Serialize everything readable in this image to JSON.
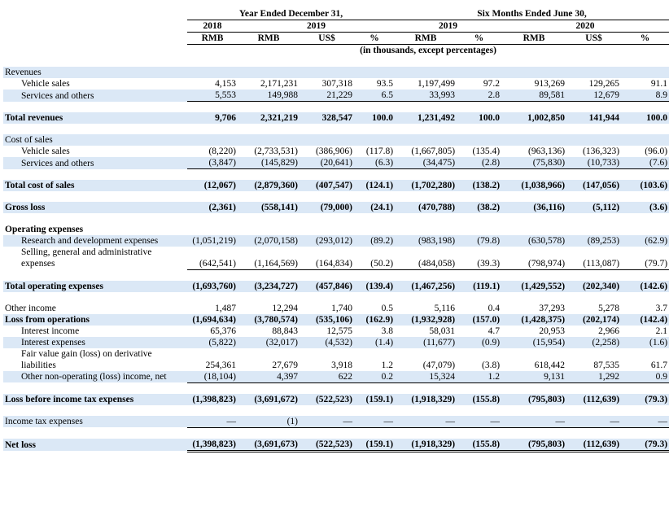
{
  "header": {
    "periods": [
      "Year Ended December 31,",
      "Six Months Ended June 30,"
    ],
    "years": [
      "2018",
      "2019",
      "2019",
      "2020"
    ],
    "units": [
      "RMB",
      "RMB",
      "US$",
      "%",
      "RMB",
      "%",
      "RMB",
      "US$",
      "%"
    ],
    "note": "(in thousands, except percentages)"
  },
  "table": {
    "rows": [
      {
        "label": "Revenues"
      },
      {
        "label": "Vehicle sales",
        "values": [
          "4,153",
          "2,171,231",
          "307,318",
          "93.5",
          "1,197,499",
          "97.2",
          "913,269",
          "129,265",
          "91.1"
        ]
      },
      {
        "label": "Services and others",
        "values": [
          "5,553",
          "149,988",
          "21,229",
          "6.5",
          "33,993",
          "2.8",
          "89,581",
          "12,679",
          "8.9"
        ]
      },
      {
        "label": "Total revenues",
        "values": [
          "9,706",
          "2,321,219",
          "328,547",
          "100.0",
          "1,231,492",
          "100.0",
          "1,002,850",
          "141,944",
          "100.0"
        ]
      },
      {
        "label": "Cost of sales"
      },
      {
        "label": "Vehicle sales",
        "values": [
          "(8,220)",
          "(2,733,531)",
          "(386,906)",
          "(117.8)",
          "(1,667,805)",
          "(135.4)",
          "(963,136)",
          "(136,323)",
          "(96.0)"
        ]
      },
      {
        "label": "Services and others",
        "values": [
          "(3,847)",
          "(145,829)",
          "(20,641)",
          "(6.3)",
          "(34,475)",
          "(2.8)",
          "(75,830)",
          "(10,733)",
          "(7.6)"
        ]
      },
      {
        "label": "Total cost of sales",
        "values": [
          "(12,067)",
          "(2,879,360)",
          "(407,547)",
          "(124.1)",
          "(1,702,280)",
          "(138.2)",
          "(1,038,966)",
          "(147,056)",
          "(103.6)"
        ]
      },
      {
        "label": "Gross loss",
        "values": [
          "(2,361)",
          "(558,141)",
          "(79,000)",
          "(24.1)",
          "(470,788)",
          "(38.2)",
          "(36,116)",
          "(5,112)",
          "(3.6)"
        ]
      },
      {
        "label": "Operating expenses"
      },
      {
        "label": "Research and development expenses",
        "values": [
          "(1,051,219)",
          "(2,070,158)",
          "(293,012)",
          "(89.2)",
          "(983,198)",
          "(79.8)",
          "(630,578)",
          "(89,253)",
          "(62.9)"
        ]
      },
      {
        "label": "Selling, general and administrative expenses",
        "values": [
          "(642,541)",
          "(1,164,569)",
          "(164,834)",
          "(50.2)",
          "(484,058)",
          "(39.3)",
          "(798,974)",
          "(113,087)",
          "(79.7)"
        ]
      },
      {
        "label": "Total operating expenses",
        "values": [
          "(1,693,760)",
          "(3,234,727)",
          "(457,846)",
          "(139.4)",
          "(1,467,256)",
          "(119.1)",
          "(1,429,552)",
          "(202,340)",
          "(142.6)"
        ]
      },
      {
        "label": "Other income",
        "values": [
          "1,487",
          "12,294",
          "1,740",
          "0.5",
          "5,116",
          "0.4",
          "37,293",
          "5,278",
          "3.7"
        ]
      },
      {
        "label": "Loss from operations",
        "values": [
          "(1,694,634)",
          "(3,780,574)",
          "(535,106)",
          "(162.9)",
          "(1,932,928)",
          "(157.0)",
          "(1,428,375)",
          "(202,174)",
          "(142.4)"
        ]
      },
      {
        "label": "Interest income",
        "values": [
          "65,376",
          "88,843",
          "12,575",
          "3.8",
          "58,031",
          "4.7",
          "20,953",
          "2,966",
          "2.1"
        ]
      },
      {
        "label": "Interest expenses",
        "values": [
          "(5,822)",
          "(32,017)",
          "(4,532)",
          "(1.4)",
          "(11,677)",
          "(0.9)",
          "(15,954)",
          "(2,258)",
          "(1.6)"
        ]
      },
      {
        "label": "Fair value gain (loss) on derivative liabilities",
        "values": [
          "254,361",
          "27,679",
          "3,918",
          "1.2",
          "(47,079)",
          "(3.8)",
          "618,442",
          "87,535",
          "61.7"
        ]
      },
      {
        "label": "Other non-operating (loss) income, net",
        "values": [
          "(18,104)",
          "4,397",
          "622",
          "0.2",
          "15,324",
          "1.2",
          "9,131",
          "1,292",
          "0.9"
        ]
      },
      {
        "label": "Loss before income tax expenses",
        "values": [
          "(1,398,823)",
          "(3,691,672)",
          "(522,523)",
          "(159.1)",
          "(1,918,329)",
          "(155.8)",
          "(795,803)",
          "(112,639)",
          "(79.3)"
        ]
      },
      {
        "label": "Income tax expenses",
        "values": [
          "—",
          "(1)",
          "—",
          "—",
          "—",
          "—",
          "—",
          "—",
          "—"
        ]
      },
      {
        "label": "Net loss",
        "values": [
          "(1,398,823)",
          "(3,691,673)",
          "(522,523)",
          "(159.1)",
          "(1,918,329)",
          "(155.8)",
          "(795,803)",
          "(112,639)",
          "(79.3)"
        ]
      }
    ]
  }
}
